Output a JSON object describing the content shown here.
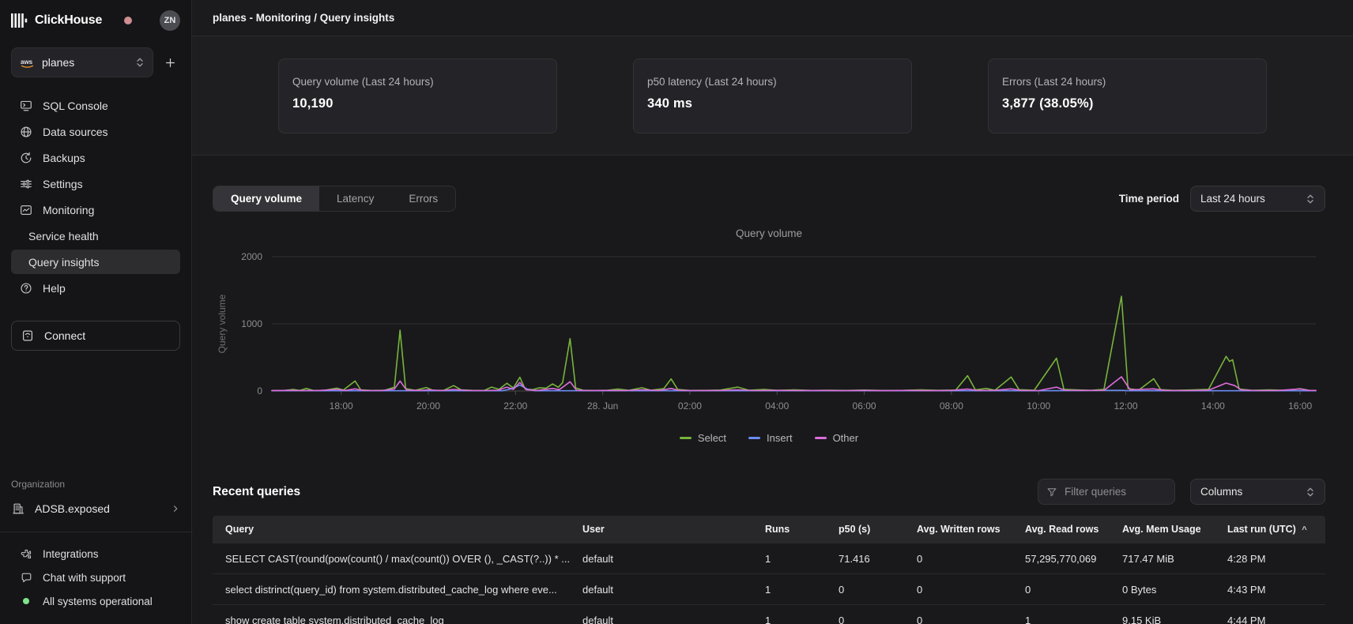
{
  "sidebar": {
    "brand": "ClickHouse",
    "avatar_initials": "ZN",
    "service_selector": {
      "value": "planes",
      "provider_icon": "aws-icon"
    },
    "nav": [
      {
        "label": "SQL Console",
        "icon": "console-icon"
      },
      {
        "label": "Data sources",
        "icon": "data-sources-icon"
      },
      {
        "label": "Backups",
        "icon": "backups-icon"
      },
      {
        "label": "Settings",
        "icon": "settings-icon"
      },
      {
        "label": "Monitoring",
        "icon": "monitoring-icon"
      },
      {
        "label": "Service health",
        "sub": true
      },
      {
        "label": "Query insights",
        "sub": true,
        "active": true
      },
      {
        "label": "Help",
        "icon": "help-icon"
      }
    ],
    "connect_label": "Connect",
    "organization": {
      "section_label": "Organization",
      "name": "ADSB.exposed"
    },
    "footer": [
      {
        "label": "Integrations",
        "icon": "integrations-icon"
      },
      {
        "label": "Chat with support",
        "icon": "chat-icon"
      },
      {
        "label": "All systems operational",
        "icon": "status-dot",
        "status_color": "#7ee38a"
      }
    ]
  },
  "header": {
    "title": "planes - Monitoring / Query insights"
  },
  "stats": [
    {
      "label": "Query volume (Last 24 hours)",
      "value": "10,190"
    },
    {
      "label": "p50 latency (Last 24 hours)",
      "value": "340 ms"
    },
    {
      "label": "Errors (Last 24 hours)",
      "value": "3,877 (38.05%)"
    }
  ],
  "chart_controls": {
    "tabs": [
      "Query volume",
      "Latency",
      "Errors"
    ],
    "active_tab": "Query volume",
    "time_period_label": "Time period",
    "time_period_value": "Last 24 hours"
  },
  "chart_data": {
    "type": "line",
    "title": "Query volume",
    "ylabel": "Query volume",
    "x_unit": "hours relative to 28. Jun 00:00 UTC",
    "x_domain": [
      -7.59,
      16.36
    ],
    "y_domain": [
      0,
      2000
    ],
    "y_ticks": [
      0,
      1000,
      2000
    ],
    "x_ticks": [
      {
        "t": -6,
        "label": "18:00"
      },
      {
        "t": -4,
        "label": "20:00"
      },
      {
        "t": -2,
        "label": "22:00"
      },
      {
        "t": 0,
        "label": "28. Jun"
      },
      {
        "t": 2,
        "label": "02:00"
      },
      {
        "t": 4,
        "label": "04:00"
      },
      {
        "t": 6,
        "label": "06:00"
      },
      {
        "t": 8,
        "label": "08:00"
      },
      {
        "t": 10,
        "label": "10:00"
      },
      {
        "t": 12,
        "label": "12:00"
      },
      {
        "t": 14,
        "label": "14:00"
      },
      {
        "t": 16,
        "label": "16:00"
      }
    ],
    "grid": true,
    "legend_position": "bottom",
    "series": [
      {
        "name": "Select",
        "color": "#77b43c",
        "points": [
          [
            -7.59,
            6
          ],
          [
            -7.3,
            8
          ],
          [
            -7.1,
            22
          ],
          [
            -6.95,
            8
          ],
          [
            -6.8,
            38
          ],
          [
            -6.65,
            10
          ],
          [
            -6.4,
            8
          ],
          [
            -6.1,
            42
          ],
          [
            -5.95,
            14
          ],
          [
            -5.68,
            148
          ],
          [
            -5.55,
            18
          ],
          [
            -5.3,
            8
          ],
          [
            -5.0,
            12
          ],
          [
            -4.78,
            55
          ],
          [
            -4.65,
            905
          ],
          [
            -4.52,
            35
          ],
          [
            -4.3,
            10
          ],
          [
            -4.05,
            52
          ],
          [
            -3.9,
            12
          ],
          [
            -3.65,
            10
          ],
          [
            -3.42,
            80
          ],
          [
            -3.25,
            18
          ],
          [
            -3.0,
            10
          ],
          [
            -2.72,
            8
          ],
          [
            -2.55,
            58
          ],
          [
            -2.38,
            25
          ],
          [
            -2.2,
            115
          ],
          [
            -2.05,
            45
          ],
          [
            -1.9,
            205
          ],
          [
            -1.78,
            28
          ],
          [
            -1.6,
            20
          ],
          [
            -1.45,
            48
          ],
          [
            -1.3,
            42
          ],
          [
            -1.15,
            105
          ],
          [
            -1.02,
            55
          ],
          [
            -0.92,
            125
          ],
          [
            -0.75,
            780
          ],
          [
            -0.62,
            45
          ],
          [
            -0.45,
            12
          ],
          [
            -0.2,
            8
          ],
          [
            0.1,
            10
          ],
          [
            0.35,
            28
          ],
          [
            0.6,
            10
          ],
          [
            0.9,
            48
          ],
          [
            1.1,
            12
          ],
          [
            1.4,
            35
          ],
          [
            1.57,
            180
          ],
          [
            1.72,
            22
          ],
          [
            2.0,
            8
          ],
          [
            2.4,
            10
          ],
          [
            2.7,
            14
          ],
          [
            3.1,
            58
          ],
          [
            3.35,
            12
          ],
          [
            3.7,
            22
          ],
          [
            4.0,
            10
          ],
          [
            4.4,
            18
          ],
          [
            4.8,
            8
          ],
          [
            5.2,
            12
          ],
          [
            5.6,
            8
          ],
          [
            6.0,
            14
          ],
          [
            6.4,
            8
          ],
          [
            6.9,
            10
          ],
          [
            7.3,
            16
          ],
          [
            7.7,
            10
          ],
          [
            8.1,
            14
          ],
          [
            8.37,
            228
          ],
          [
            8.55,
            18
          ],
          [
            8.8,
            38
          ],
          [
            9.0,
            12
          ],
          [
            9.37,
            208
          ],
          [
            9.55,
            20
          ],
          [
            9.9,
            12
          ],
          [
            10.41,
            488
          ],
          [
            10.58,
            25
          ],
          [
            10.85,
            18
          ],
          [
            11.2,
            10
          ],
          [
            11.5,
            25
          ],
          [
            11.9,
            1412
          ],
          [
            12.05,
            35
          ],
          [
            12.3,
            15
          ],
          [
            12.64,
            182
          ],
          [
            12.8,
            20
          ],
          [
            13.1,
            10
          ],
          [
            13.5,
            15
          ],
          [
            13.9,
            25
          ],
          [
            14.3,
            515
          ],
          [
            14.38,
            440
          ],
          [
            14.45,
            465
          ],
          [
            14.6,
            28
          ],
          [
            14.9,
            10
          ],
          [
            15.3,
            16
          ],
          [
            15.7,
            8
          ],
          [
            16.0,
            35
          ],
          [
            16.2,
            10
          ],
          [
            16.36,
            8
          ]
        ]
      },
      {
        "name": "Insert",
        "color": "#6b8cf2",
        "points": [
          [
            -7.59,
            3
          ],
          [
            -6,
            3
          ],
          [
            -5,
            3
          ],
          [
            -4,
            3
          ],
          [
            -3,
            3
          ],
          [
            -2.3,
            4
          ],
          [
            -2.1,
            30
          ],
          [
            -1.9,
            88
          ],
          [
            -1.72,
            25
          ],
          [
            -1.55,
            4
          ],
          [
            -1,
            3
          ],
          [
            0,
            3
          ],
          [
            2,
            3
          ],
          [
            4,
            3
          ],
          [
            6,
            3
          ],
          [
            8,
            3
          ],
          [
            10,
            3
          ],
          [
            11.9,
            10
          ],
          [
            12.1,
            3
          ],
          [
            14,
            3
          ],
          [
            16.36,
            3
          ]
        ]
      },
      {
        "name": "Other",
        "color": "#dc6edc",
        "points": [
          [
            -7.59,
            5
          ],
          [
            -7.2,
            10
          ],
          [
            -6.9,
            6
          ],
          [
            -6.5,
            8
          ],
          [
            -6.1,
            24
          ],
          [
            -5.9,
            8
          ],
          [
            -5.68,
            32
          ],
          [
            -5.5,
            8
          ],
          [
            -5.1,
            6
          ],
          [
            -4.78,
            28
          ],
          [
            -4.65,
            148
          ],
          [
            -4.5,
            14
          ],
          [
            -4.2,
            8
          ],
          [
            -4.0,
            18
          ],
          [
            -3.7,
            6
          ],
          [
            -3.42,
            24
          ],
          [
            -3.1,
            8
          ],
          [
            -2.8,
            6
          ],
          [
            -2.4,
            12
          ],
          [
            -2.2,
            58
          ],
          [
            -2.05,
            25
          ],
          [
            -1.9,
            128
          ],
          [
            -1.75,
            18
          ],
          [
            -1.5,
            8
          ],
          [
            -1.15,
            38
          ],
          [
            -1.0,
            20
          ],
          [
            -0.92,
            55
          ],
          [
            -0.75,
            138
          ],
          [
            -0.6,
            12
          ],
          [
            -0.3,
            6
          ],
          [
            0.1,
            8
          ],
          [
            0.5,
            6
          ],
          [
            0.9,
            18
          ],
          [
            1.3,
            8
          ],
          [
            1.57,
            38
          ],
          [
            1.75,
            10
          ],
          [
            2.2,
            6
          ],
          [
            2.7,
            8
          ],
          [
            3.1,
            18
          ],
          [
            3.5,
            6
          ],
          [
            4.0,
            10
          ],
          [
            4.5,
            6
          ],
          [
            5.0,
            8
          ],
          [
            5.5,
            5
          ],
          [
            6.0,
            8
          ],
          [
            6.5,
            5
          ],
          [
            7.0,
            8
          ],
          [
            7.5,
            5
          ],
          [
            8.0,
            8
          ],
          [
            8.37,
            28
          ],
          [
            8.6,
            8
          ],
          [
            9.0,
            10
          ],
          [
            9.37,
            32
          ],
          [
            9.6,
            8
          ],
          [
            10.0,
            6
          ],
          [
            10.41,
            58
          ],
          [
            10.6,
            12
          ],
          [
            11.0,
            8
          ],
          [
            11.5,
            10
          ],
          [
            11.9,
            212
          ],
          [
            12.1,
            18
          ],
          [
            12.64,
            32
          ],
          [
            12.9,
            8
          ],
          [
            13.4,
            6
          ],
          [
            13.9,
            12
          ],
          [
            14.3,
            118
          ],
          [
            14.5,
            80
          ],
          [
            14.65,
            15
          ],
          [
            15.0,
            6
          ],
          [
            15.5,
            8
          ],
          [
            16.0,
            30
          ],
          [
            16.2,
            10
          ],
          [
            16.36,
            8
          ]
        ]
      }
    ]
  },
  "recent_queries": {
    "title": "Recent queries",
    "filter_placeholder": "Filter queries",
    "columns_button": "Columns",
    "table": {
      "headers": [
        {
          "label": "Query"
        },
        {
          "label": "User"
        },
        {
          "label": "Runs"
        },
        {
          "label": "p50 (s)"
        },
        {
          "label": "Avg. Written rows"
        },
        {
          "label": "Avg. Read rows"
        },
        {
          "label": "Avg. Mem Usage"
        },
        {
          "label": "Last run (UTC)",
          "sort": "asc"
        }
      ],
      "rows": [
        [
          "SELECT CAST(round(pow(count() / max(count()) OVER (), _CAST(?..)) * ...",
          "default",
          "1",
          "71.416",
          "0",
          "57,295,770,069",
          "717.47 MiB",
          "4:28 PM"
        ],
        [
          "select distrinct(query_id) from system.distributed_cache_log where eve...",
          "default",
          "1",
          "0",
          "0",
          "0",
          "0 Bytes",
          "4:43 PM"
        ],
        [
          "show create table system.distributed_cache_log",
          "default",
          "1",
          "0",
          "0",
          "1",
          "9.15 KiB",
          "4:44 PM"
        ]
      ]
    }
  }
}
